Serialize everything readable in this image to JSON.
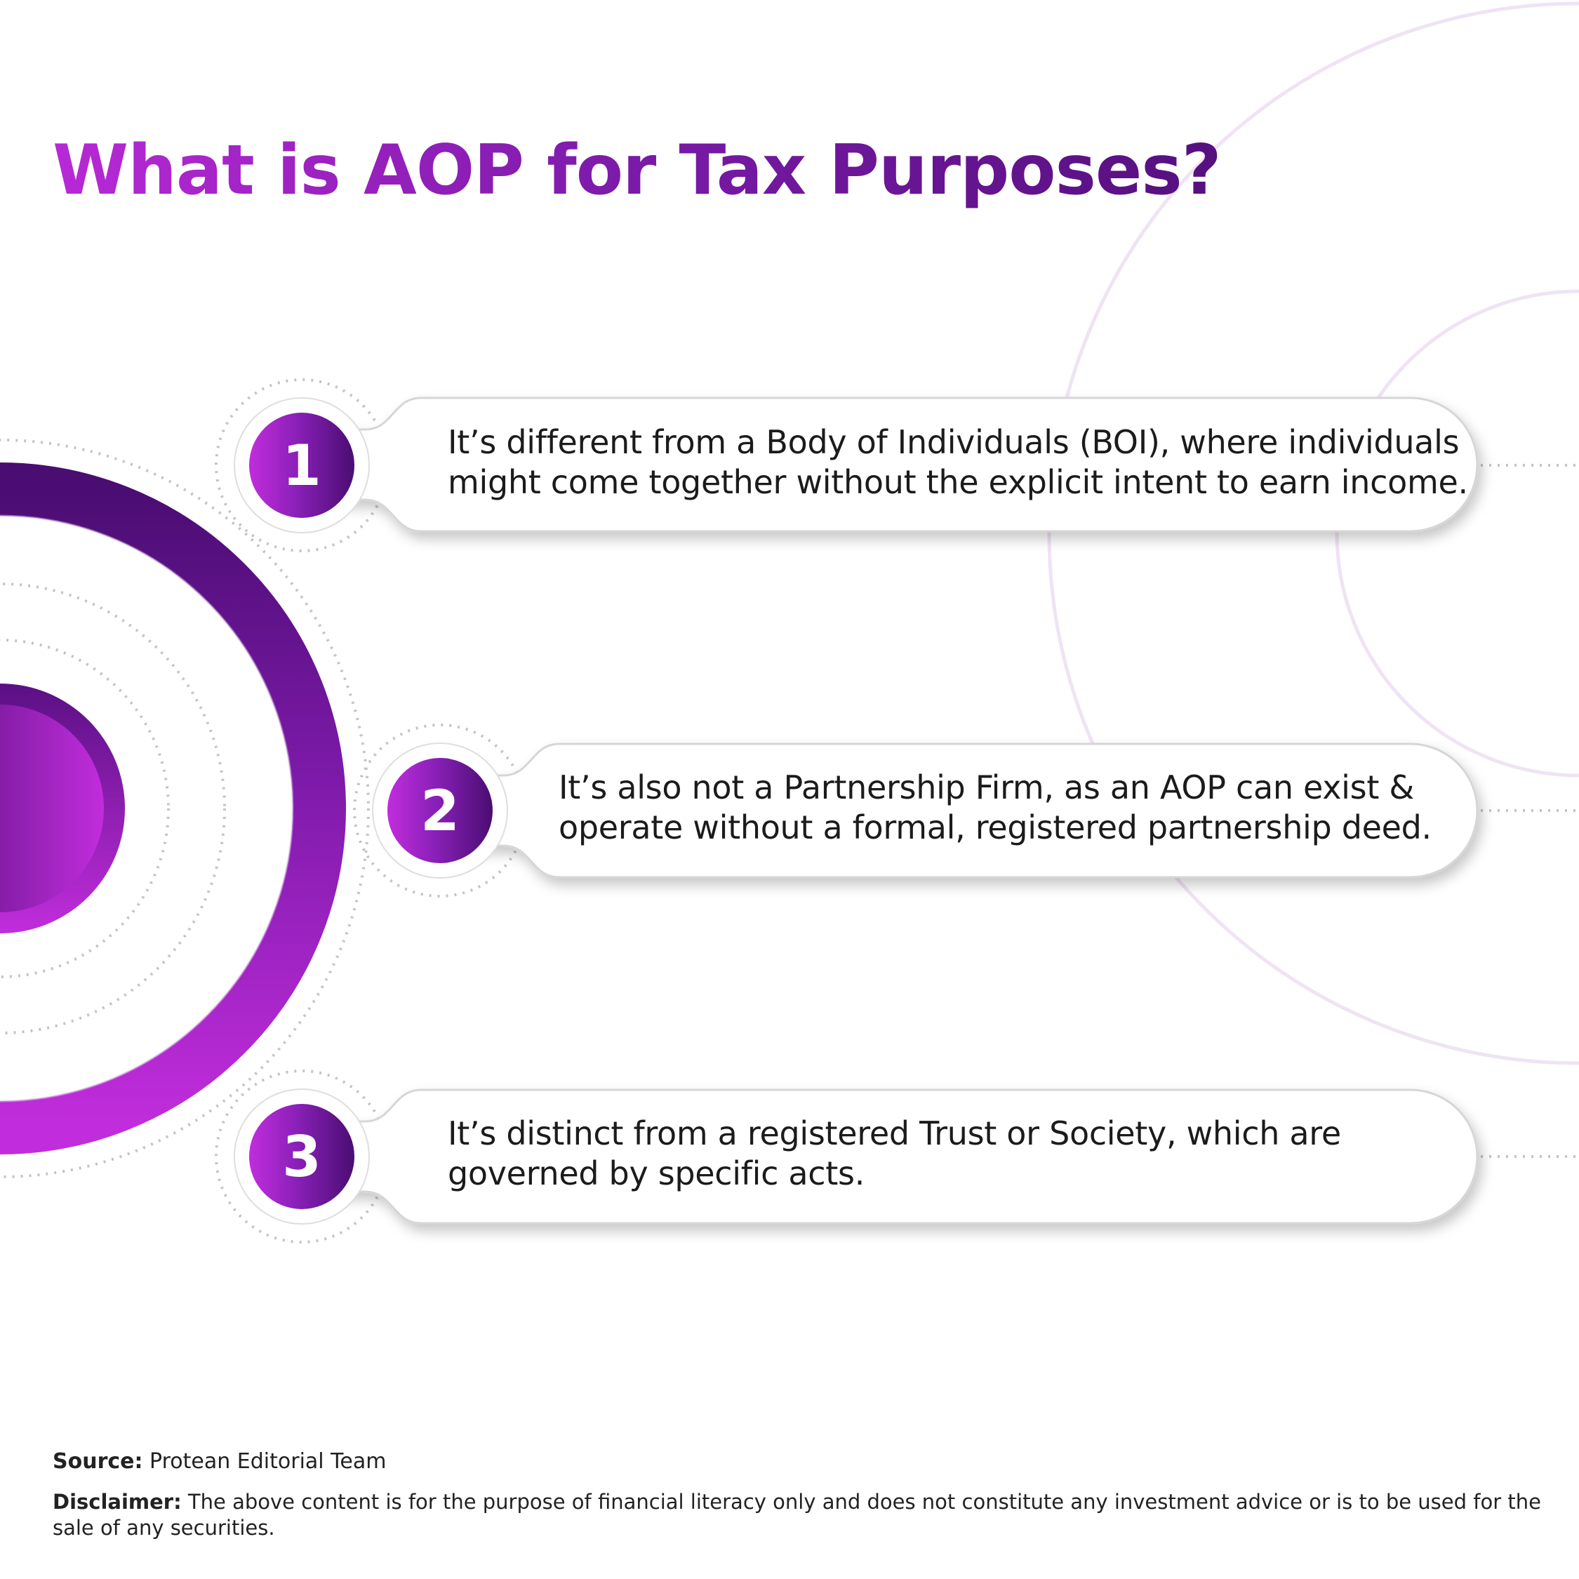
{
  "title": "What is AOP for Tax Purposes?",
  "items": [
    {
      "number": "1",
      "line1": "It’s different from a Body of Individuals (BOI), where individuals",
      "line2": "might come together without the explicit intent to earn income."
    },
    {
      "number": "2",
      "line1": "It’s also not a Partnership Firm, as an AOP can exist &",
      "line2": "operate without a formal, registered partnership deed."
    },
    {
      "number": "3",
      "line1": "It’s distinct from a registered Trust or Society, which are",
      "line2": "governed by specific acts."
    }
  ],
  "footer": {
    "source_label": "Source:",
    "source_text": "Protean Editorial Team",
    "disclaimer_label": "Disclaimer:",
    "disclaimer_line1": "The above content is for the purpose of financial literacy only and does not constitute any investment advice or is to be used for the",
    "disclaimer_line2": "sale of any securities."
  },
  "colors": {
    "accent_light": "#c12ddc",
    "accent_dark": "#4a0d72",
    "text": "#1b1b1b"
  }
}
